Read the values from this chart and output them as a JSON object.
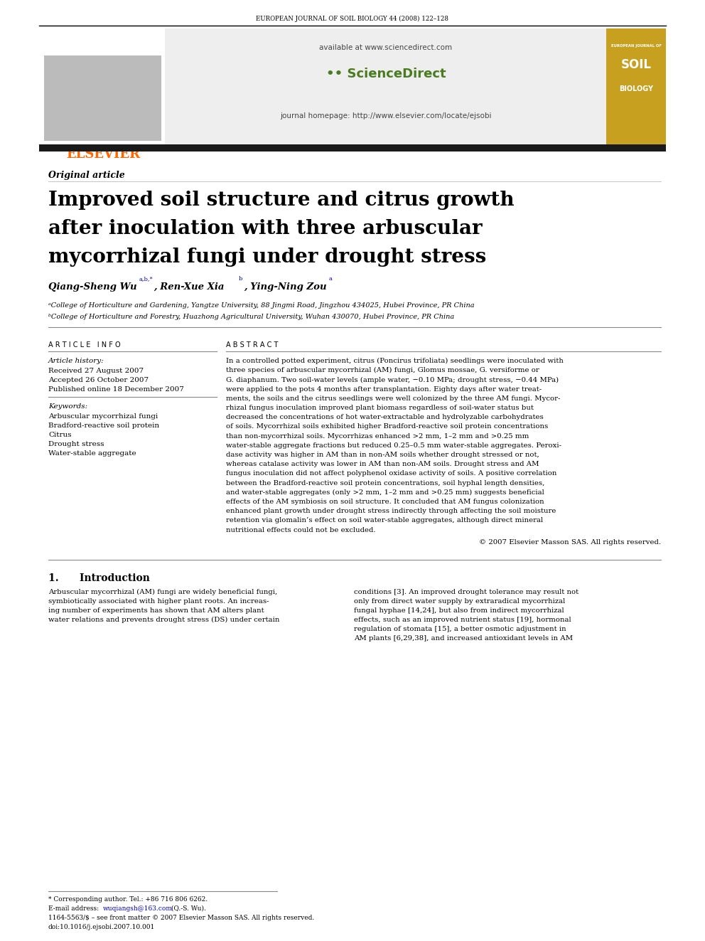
{
  "page_width": 9.92,
  "page_height": 13.23,
  "bg_color": "#ffffff",
  "journal_header": "EUROPEAN JOURNAL OF SOIL BIOLOGY 44 (2008) 122–128",
  "elsevier_color": "#ff6600",
  "elsevier_text": "ELSEVIER",
  "sd_available": "available at www.sciencedirect.com",
  "sd_logo_text": "ScienceDirect",
  "journal_homepage": "journal homepage: http://www.elsevier.com/locate/ejsobi",
  "black_bar_color": "#1a1a1a",
  "article_type": "Original article",
  "title_line1": "Improved soil structure and citrus growth",
  "title_line2": "after inoculation with three arbuscular",
  "title_line3": "mycorrhizal fungi under drought stress",
  "affil_a": "ᵃCollege of Horticulture and Gardening, Yangtze University, 88 Jingmi Road, Jingzhou 434025, Hubei Province, PR China",
  "affil_b": "ᵇCollege of Horticulture and Forestry, Huazhong Agricultural University, Wuhan 430070, Hubei Province, PR China",
  "article_info_header": "A R T I C L E   I N F O",
  "abstract_header": "A B S T R A C T",
  "article_history_label": "Article history:",
  "received": "Received 27 August 2007",
  "accepted": "Accepted 26 October 2007",
  "published": "Published online 18 December 2007",
  "keywords_label": "Keywords:",
  "keywords": [
    "Arbuscular mycorrhizal fungi",
    "Bradford-reactive soil protein",
    "Citrus",
    "Drought stress",
    "Water-stable aggregate"
  ],
  "copyright_text": "© 2007 Elsevier Masson SAS. All rights reserved.",
  "intro_header": "1.      Introduction",
  "footnote_star": "* Corresponding author. Tel.: +86 716 806 6262.",
  "footnote_email_prefix": "E-mail address: ",
  "footnote_email": "wuqiangsh@163.com",
  "footnote_email_suffix": " (Q.-S. Wu).",
  "footnote_issn": "1164-5563/$ – see front matter © 2007 Elsevier Masson SAS. All rights reserved.",
  "footnote_doi": "doi:10.1016/j.ejsobi.2007.10.001",
  "journal_cover_bg": "#c8a020",
  "abstract_lines": [
    "In a controlled potted experiment, citrus (Poncirus trifoliata) seedlings were inoculated with",
    "three species of arbuscular mycorrhizal (AM) fungi, Glomus mossae, G. versiforme or",
    "G. diaphanum. Two soil-water levels (ample water, −0.10 MPa; drought stress, −0.44 MPa)",
    "were applied to the pots 4 months after transplantation. Eighty days after water treat-",
    "ments, the soils and the citrus seedlings were well colonized by the three AM fungi. Mycor-",
    "rhizal fungus inoculation improved plant biomass regardless of soil-water status but",
    "decreased the concentrations of hot water-extractable and hydrolyzable carbohydrates",
    "of soils. Mycorrhizal soils exhibited higher Bradford-reactive soil protein concentrations",
    "than non-mycorrhizal soils. Mycorrhizas enhanced >2 mm, 1–2 mm and >0.25 mm",
    "water-stable aggregate fractions but reduced 0.25–0.5 mm water-stable aggregates. Peroxi-",
    "dase activity was higher in AM than in non-AM soils whether drought stressed or not,",
    "whereas catalase activity was lower in AM than non-AM soils. Drought stress and AM",
    "fungus inoculation did not affect polyphenol oxidase activity of soils. A positive correlation",
    "between the Bradford-reactive soil protein concentrations, soil hyphal length densities,",
    "and water-stable aggregates (only >2 mm, 1–2 mm and >0.25 mm) suggests beneficial",
    "effects of the AM symbiosis on soil structure. It concluded that AM fungus colonization",
    "enhanced plant growth under drought stress indirectly through affecting the soil moisture",
    "retention via glomalin’s effect on soil water-stable aggregates, although direct mineral",
    "nutritional effects could not be excluded."
  ],
  "intro_left_lines": [
    "Arbuscular mycorrhizal (AM) fungi are widely beneficial fungi,",
    "symbiotically associated with higher plant roots. An increas-",
    "ing number of experiments has shown that AM alters plant",
    "water relations and prevents drought stress (DS) under certain"
  ],
  "intro_right_lines": [
    "conditions [3]. An improved drought tolerance may result not",
    "only from direct water supply by extraradical mycorrhizal",
    "fungal hyphae [14,24], but also from indirect mycorrhizal",
    "effects, such as an improved nutrient status [19], hormonal",
    "regulation of stomata [15], a better osmotic adjustment in",
    "AM plants [6,29,38], and increased antioxidant levels in AM"
  ]
}
